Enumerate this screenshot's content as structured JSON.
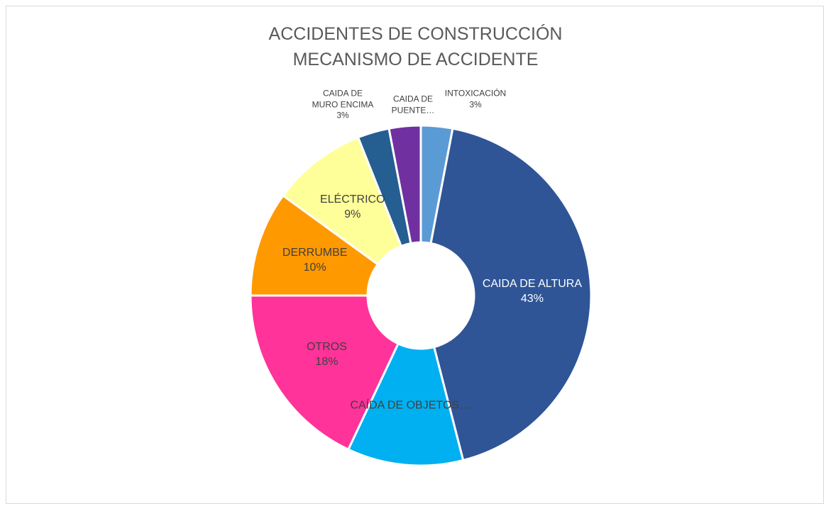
{
  "chart_data": {
    "type": "donut",
    "title": "ACCIDENTES DE CONSTRUCCIÓN",
    "subtitle": "MECANISMO DE ACCIDENTE",
    "categories": [
      "INTOXICACIÓN",
      "CAIDA DE ALTURA",
      "CAÍDA DE OBJETOS…",
      "OTROS",
      "DERRUMBE",
      "ELÉCTRICO",
      "CAIDA DE MURO ENCIMA",
      "CAIDA DE PUENTE…"
    ],
    "values": [
      3,
      43,
      11,
      18,
      10,
      9,
      3,
      3
    ],
    "value_labels": [
      "3%",
      "43%",
      null,
      "18%",
      "10%",
      "9%",
      "3%",
      null
    ],
    "colors": [
      "#5b9bd5",
      "#2f5597",
      "#00b0f0",
      "#ff3399",
      "#ff9900",
      "#ffff99",
      "#255e91",
      "#7030a0"
    ]
  }
}
